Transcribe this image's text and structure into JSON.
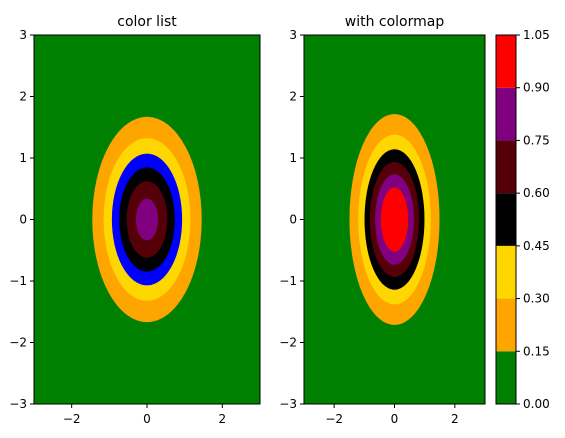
{
  "chart_data": [
    {
      "type": "contourf",
      "title": "color list",
      "xlabel": "",
      "ylabel": "",
      "xlim": [
        -3,
        3
      ],
      "ylim": [
        -3,
        3
      ],
      "xticks": [
        -2,
        0,
        2
      ],
      "yticks": [
        -3,
        -2,
        -1,
        0,
        1,
        2,
        3
      ],
      "xtick_labels": [
        "−2",
        "0",
        "2"
      ],
      "ytick_labels": [
        "−3",
        "−2",
        "−1",
        "0",
        "1",
        "2",
        "3"
      ],
      "levels": [
        0.0,
        0.15,
        0.3,
        0.45,
        0.6,
        0.75,
        0.9
      ],
      "level_colors": [
        "#008000",
        "#ffa500",
        "#ffd700",
        "#0000ff",
        "#000000",
        "#550008",
        "#800080"
      ],
      "legend": "none",
      "grid": false
    },
    {
      "type": "contourf",
      "title": "with colormap",
      "xlabel": "",
      "ylabel": "",
      "xlim": [
        -3,
        3
      ],
      "ylim": [
        -3,
        3
      ],
      "xticks": [
        -2,
        0,
        2
      ],
      "yticks": [
        -3,
        -2,
        -1,
        0,
        1,
        2,
        3
      ],
      "xtick_labels": [
        "−2",
        "0",
        "2"
      ],
      "ytick_labels": [
        "−3",
        "−2",
        "−1",
        "0",
        "1",
        "2",
        "3"
      ],
      "levels": [
        0.0,
        0.15,
        0.3,
        0.45,
        0.6,
        0.75,
        0.9,
        1.05
      ],
      "level_colors": [
        "#008000",
        "#ffa500",
        "#ffd700",
        "#000000",
        "#550008",
        "#800080",
        "#ff0000"
      ],
      "legend": "none",
      "grid": false,
      "colorbar": {
        "placement": "right",
        "ticks": [
          0.0,
          0.15,
          0.3,
          0.45,
          0.6,
          0.75,
          0.9,
          1.05
        ],
        "tick_labels": [
          "0.00",
          "0.15",
          "0.30",
          "0.45",
          "0.60",
          "0.75",
          "0.90",
          "1.05"
        ],
        "colors": [
          "#008000",
          "#ffa500",
          "#ffd700",
          "#000000",
          "#550008",
          "#800080",
          "#ff0000"
        ]
      }
    }
  ]
}
